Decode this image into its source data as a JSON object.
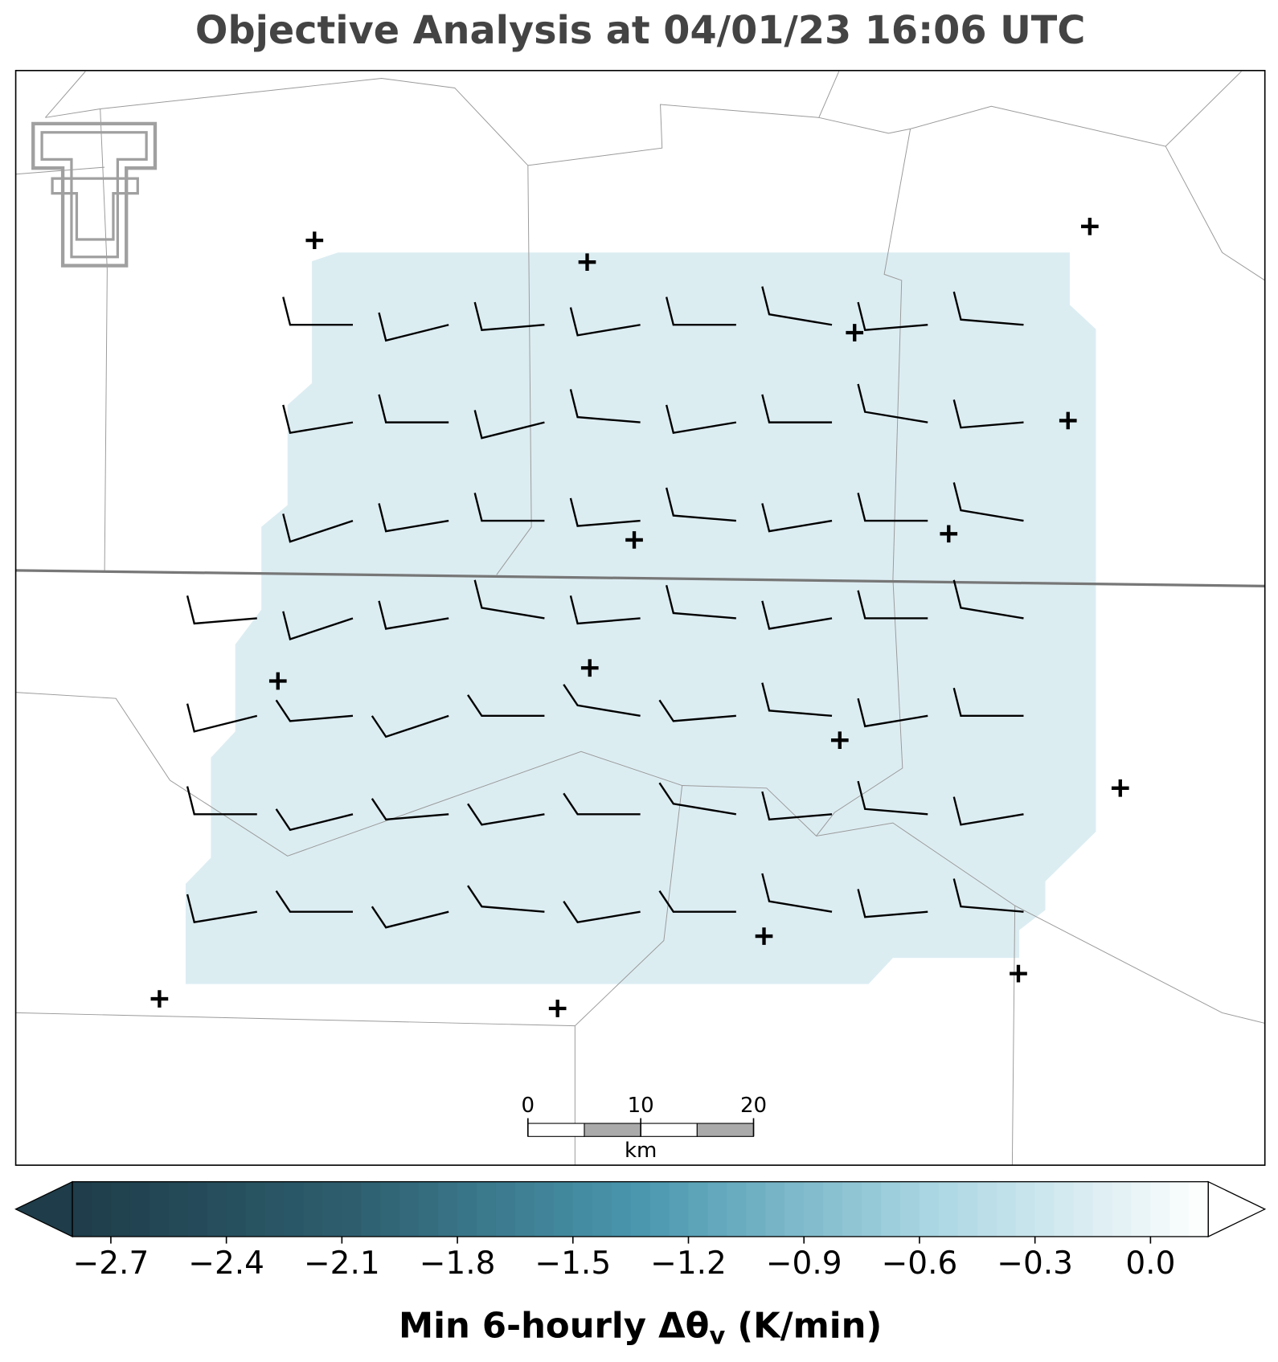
{
  "title": "Objective Analysis at 04/01/23 16:06 UTC",
  "colorbar": {
    "clim": [
      -2.8,
      0.15
    ],
    "colors": [
      "#1e3c49",
      "#2e5f6f",
      "#4a97ae",
      "#a8d5e1",
      "#ffffff"
    ],
    "ticks": [
      {
        "value": -2.7,
        "label": "−2.7"
      },
      {
        "value": -2.4,
        "label": "−2.4"
      },
      {
        "value": -2.1,
        "label": "−2.1"
      },
      {
        "value": -1.8,
        "label": "−1.8"
      },
      {
        "value": -1.5,
        "label": "−1.5"
      },
      {
        "value": -1.2,
        "label": "−1.2"
      },
      {
        "value": -0.9,
        "label": "−0.9"
      },
      {
        "value": -0.6,
        "label": "−0.6"
      },
      {
        "value": -0.3,
        "label": "−0.3"
      },
      {
        "value": 0,
        "label": "0.0"
      }
    ],
    "label": [
      "Min 6-hourly Δθ",
      "v",
      " (K/min)"
    ]
  },
  "scale_bar": {
    "ticks": [
      0,
      10,
      20
    ],
    "unit": "km"
  }
}
